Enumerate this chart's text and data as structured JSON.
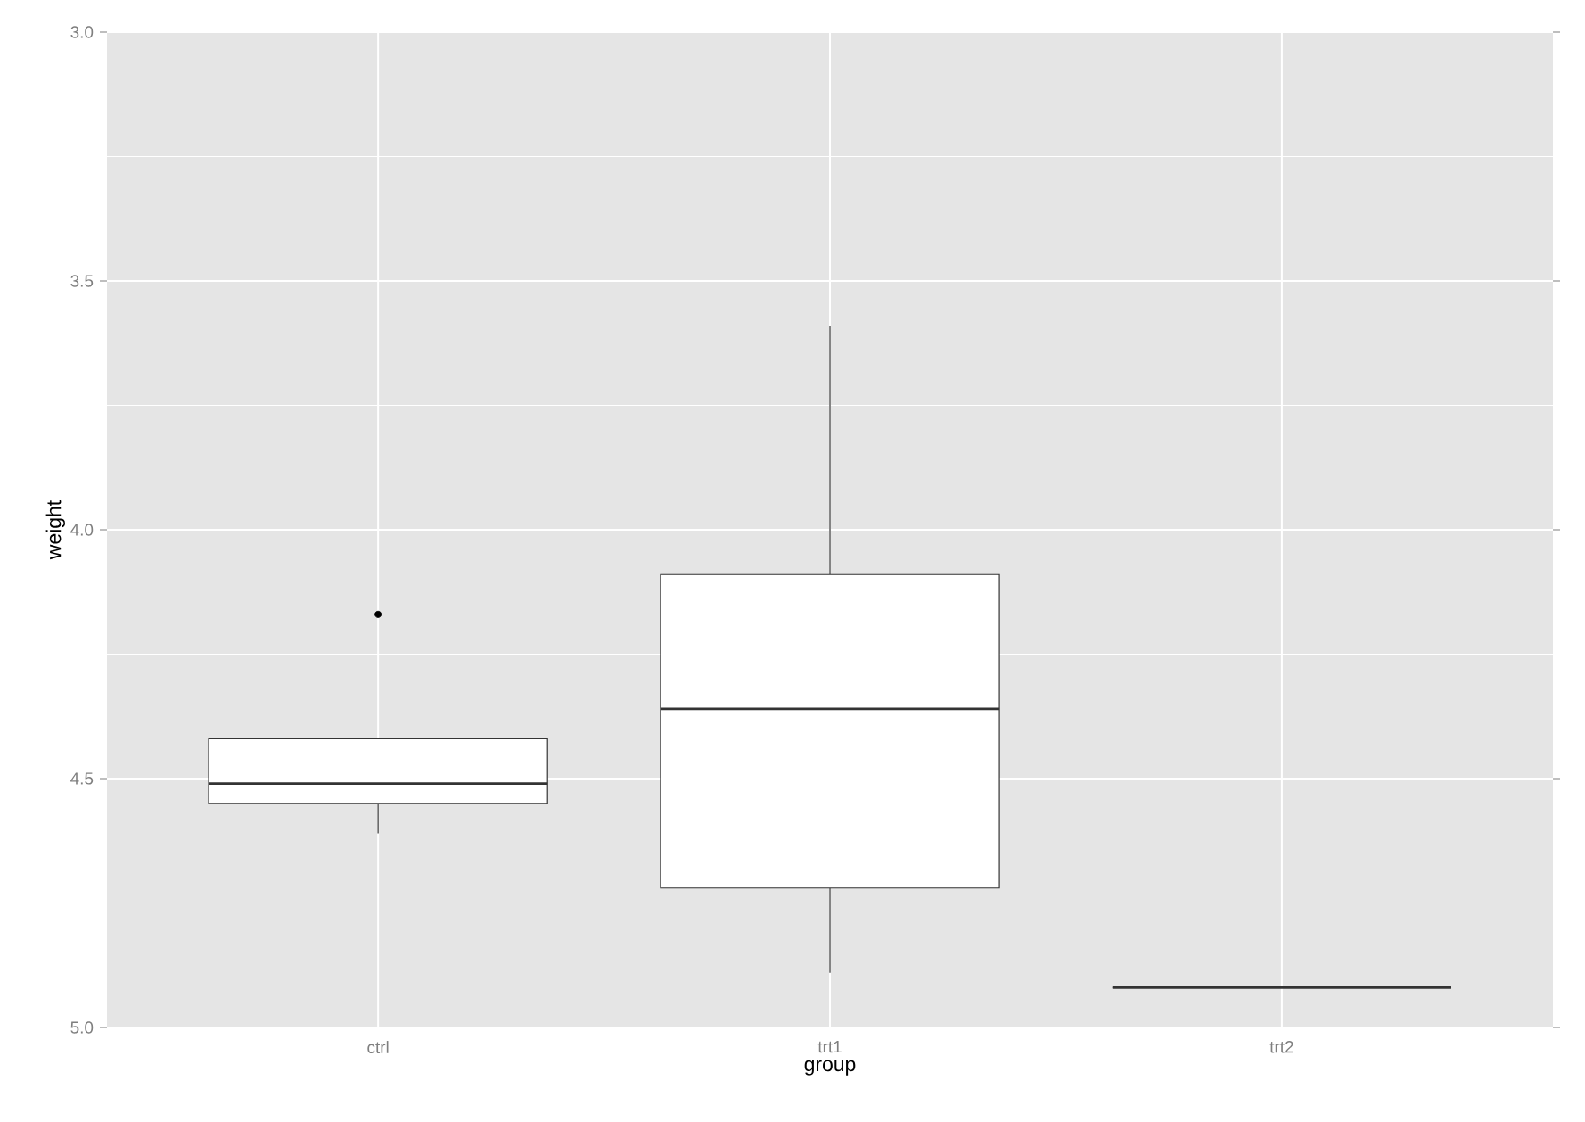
{
  "chart_data": {
    "type": "box",
    "xlabel": "group",
    "ylabel": "weight",
    "categories": [
      "ctrl",
      "trt1",
      "trt2"
    ],
    "boxes": [
      {
        "low": 4.42,
        "q1": 4.42,
        "median": 4.51,
        "q3": 4.55,
        "high": 4.61,
        "outliers": [
          4.17
        ]
      },
      {
        "low": 3.59,
        "q1": 4.09,
        "median": 4.36,
        "q3": 4.72,
        "high": 4.89
      },
      {
        "low": 4.92,
        "q1": 4.92,
        "median": 4.92,
        "q3": 4.92,
        "high": 4.92
      }
    ],
    "ylim": [
      5.0,
      3.0
    ],
    "yticks": [
      {
        "value": 3,
        "label": "3.0"
      },
      {
        "value": 3.5,
        "label": "3.5"
      },
      {
        "value": 4,
        "label": "4.0"
      },
      {
        "value": 4.5,
        "label": "4.5"
      },
      {
        "value": 5,
        "label": "5.0"
      }
    ],
    "grid": true
  }
}
